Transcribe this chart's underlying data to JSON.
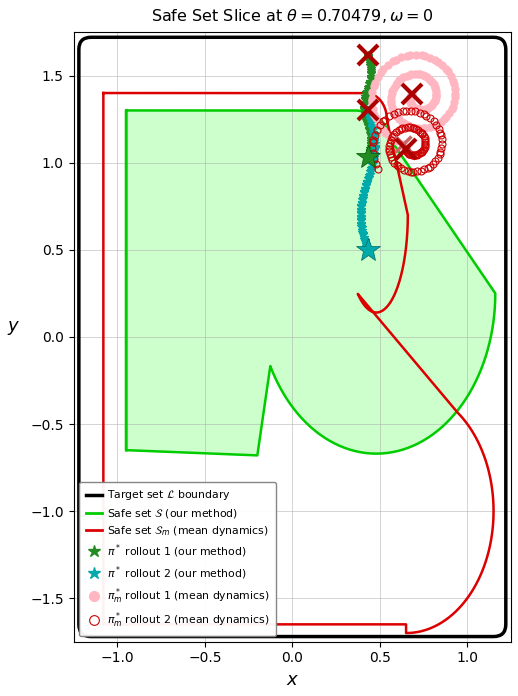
{
  "title": "Safe Set Slice at $\\theta = 0.70479, \\omega = 0$",
  "xlabel": "$x$",
  "ylabel": "$y$",
  "xlim": [
    -1.25,
    1.25
  ],
  "ylim": [
    -1.75,
    1.75
  ],
  "xticks": [
    -1,
    -0.5,
    0,
    0.5,
    1
  ],
  "yticks": [
    -1.5,
    -1,
    -0.5,
    0,
    0.5,
    1,
    1.5
  ],
  "target_set_color": "#000000",
  "safe_set_our_color": "#00CC00",
  "safe_set_mean_color": "#DD0000",
  "safe_fill_color": "#CCFFCC",
  "legend_labels": [
    "Target set $\\mathcal{L}$ boundary",
    "Safe set $\\mathcal{S}$ (our method)",
    "Safe set $\\mathcal{S}_m$ (mean dynamics)",
    "$\\pi^*$ rollout 1 (our method)",
    "$\\pi^*$ rollout 2 (our method)",
    "$\\pi_m^*$ rollout 1 (mean dynamics)",
    "$\\pi_m^*$ rollout 2 (mean dynamics)"
  ]
}
